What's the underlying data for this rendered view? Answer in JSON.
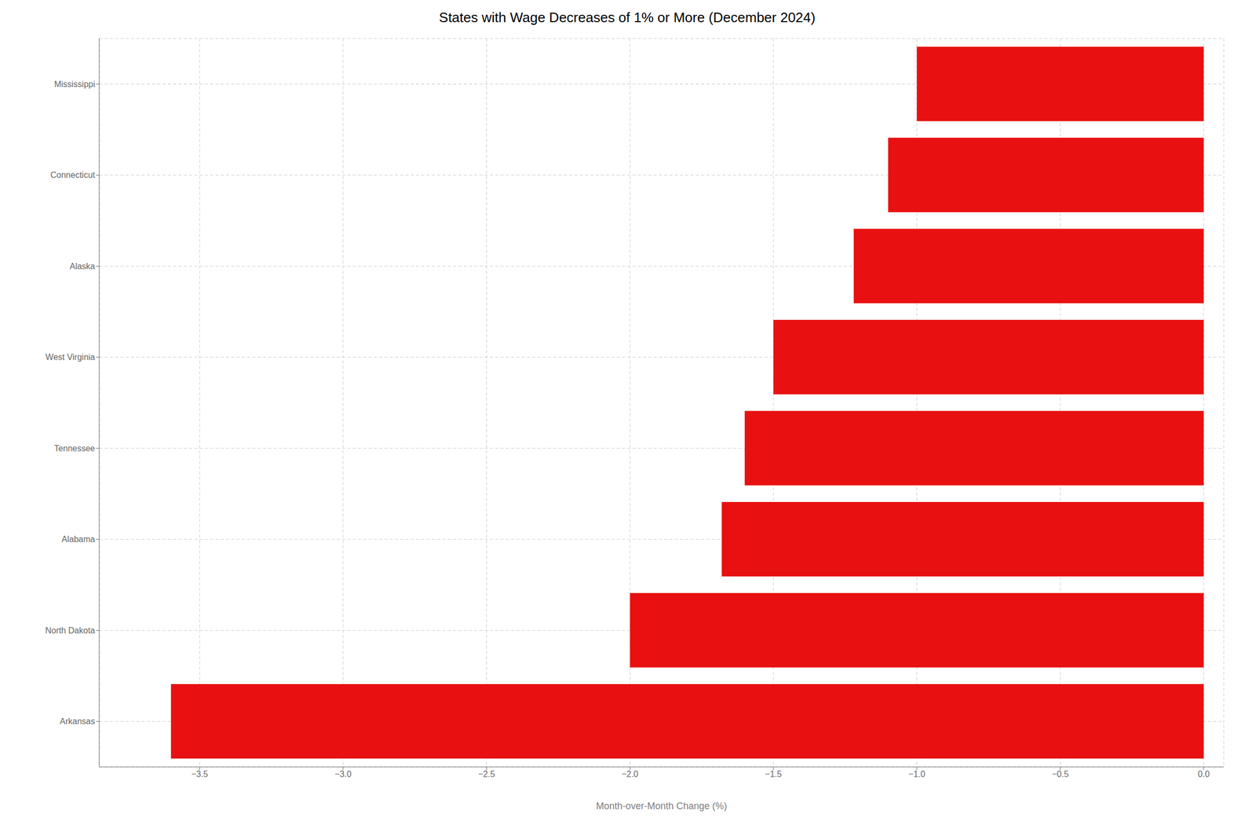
{
  "chart_data": {
    "type": "bar",
    "orientation": "horizontal",
    "title": "States with Wage Decreases of 1% or More (December 2024)",
    "xlabel": "Month-over-Month Change (%)",
    "categories": [
      "Arkansas",
      "North Dakota",
      "Alabama",
      "Tennessee",
      "West Virginia",
      "Alaska",
      "Connecticut",
      "Mississippi"
    ],
    "values": [
      -3.6,
      -2.0,
      -1.68,
      -1.6,
      -1.5,
      -1.22,
      -1.1,
      -1.0
    ],
    "color": "#e81010",
    "xlim": [
      -3.85,
      0.07
    ],
    "xticks": [
      {
        "value": -3.5,
        "label": "−3.5"
      },
      {
        "value": -3.0,
        "label": "−3.0"
      },
      {
        "value": -2.5,
        "label": "−2.5"
      },
      {
        "value": -2.0,
        "label": "−2.0"
      },
      {
        "value": -1.5,
        "label": "−1.5"
      },
      {
        "value": -1.0,
        "label": "−1.0"
      },
      {
        "value": -0.5,
        "label": "−0.5"
      },
      {
        "value": 0.0,
        "label": "0.0"
      }
    ],
    "grid": true
  }
}
